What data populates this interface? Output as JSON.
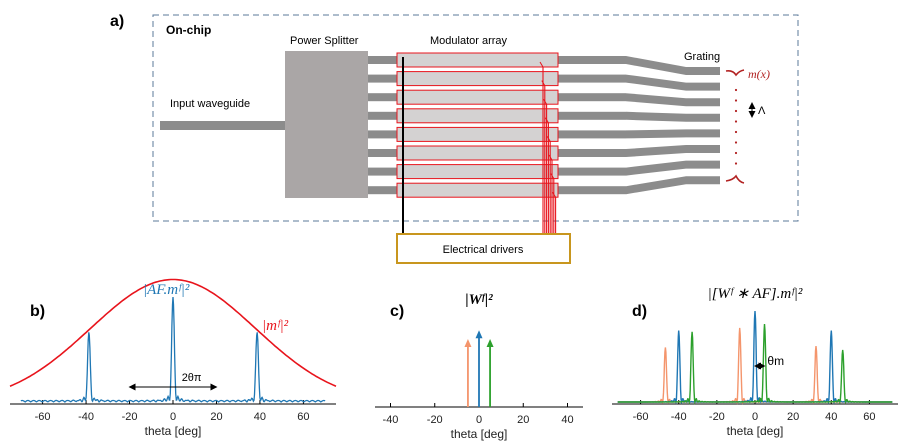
{
  "panels": {
    "a": {
      "letter": "a)",
      "title": "On-chip",
      "input_waveguide": "Input waveguide",
      "power_splitter": "Power Splitter",
      "modulator_array": "Modulator array",
      "grating": "Grating",
      "electrical_drivers": "Electrical drivers",
      "mode_label": "m(x)",
      "period_label": "Λ",
      "waveguide_count": 8
    },
    "b": {
      "letter": "b)"
    },
    "c": {
      "letter": "c)"
    },
    "d": {
      "letter": "d)",
      "theta_m_label": "θm"
    }
  },
  "colors": {
    "blue": "#1f77b4",
    "red": "#e8141c",
    "orange": "#f4956c",
    "green": "#2ca02c",
    "dark_red": "#b22222",
    "gold": "#c8961e",
    "grey_waveguide": "#8c8c8c",
    "grey_splitter": "#aaa6a6"
  },
  "chart_data": [
    {
      "panel": "b",
      "type": "line",
      "xlabel": "theta [deg]",
      "xticks": [
        -60,
        -40,
        -20,
        0,
        20,
        40,
        60
      ],
      "xlim": [
        -75,
        75
      ],
      "series": [
        {
          "name": "|AF.m^F|^2",
          "peaks": [
            -38.7,
            0,
            38.7
          ],
          "peak_heights": [
            0.46,
            0.7,
            0.46
          ]
        },
        {
          "name": "|m^F|^2",
          "envelope_center": 0,
          "envelope_peak": 0.83
        }
      ],
      "annotation": "2θπ",
      "annotation_span": [
        -20,
        20
      ]
    },
    {
      "panel": "c",
      "type": "bar",
      "title": "|W^F|^2",
      "xlabel": "theta [deg]",
      "xticks": [
        -40,
        -20,
        0,
        20,
        40
      ],
      "xlim": [
        -47,
        47
      ],
      "arrows": [
        {
          "x": -5,
          "height": 0.6,
          "color": "orange"
        },
        {
          "x": 0,
          "height": 0.68,
          "color": "blue"
        },
        {
          "x": 5,
          "height": 0.6,
          "color": "green"
        }
      ]
    },
    {
      "panel": "d",
      "type": "line",
      "title": "|[W^F * AF].m^F|^2",
      "xlabel": "theta [deg]",
      "xticks": [
        -60,
        -40,
        -20,
        0,
        20,
        40,
        60
      ],
      "xlim": [
        -75,
        75
      ],
      "series": [
        {
          "color": "orange",
          "peaks": [
            -47,
            -8,
            32
          ],
          "heights": [
            0.42,
            0.57,
            0.43
          ]
        },
        {
          "color": "blue",
          "peaks": [
            -40,
            0,
            40
          ],
          "heights": [
            0.55,
            0.7,
            0.55
          ]
        },
        {
          "color": "green",
          "peaks": [
            -33,
            5,
            46
          ],
          "heights": [
            0.54,
            0.6,
            0.4
          ]
        }
      ],
      "annotation": "θm"
    }
  ]
}
